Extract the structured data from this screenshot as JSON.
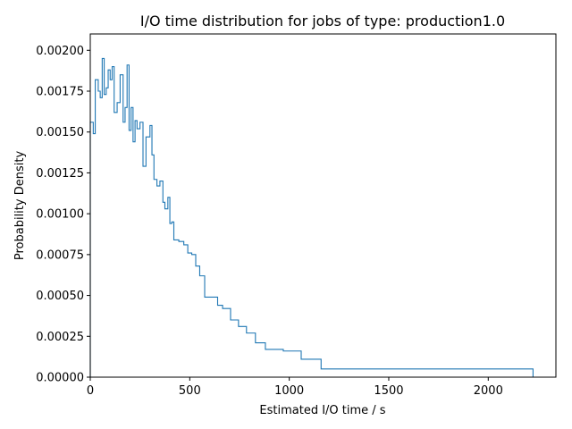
{
  "chart_data": {
    "type": "histogram-step",
    "title": "I/O time distribution for jobs of type: production1.0",
    "xlabel": "Estimated I/O time / s",
    "ylabel": "Probability Density",
    "xlim": [
      0,
      2340
    ],
    "ylim": [
      0,
      0.0021
    ],
    "xticks": [
      0,
      500,
      1000,
      1500,
      2000
    ],
    "xtick_labels": [
      "0",
      "500",
      "1000",
      "1500",
      "2000"
    ],
    "yticks": [
      0,
      0.00025,
      0.0005,
      0.00075,
      0.001,
      0.00125,
      0.0015,
      0.00175,
      0.002
    ],
    "ytick_labels": [
      "0.00000",
      "0.00025",
      "0.00050",
      "0.00075",
      "0.00100",
      "0.00125",
      "0.00150",
      "0.00175",
      "0.00200"
    ],
    "line_color": "#1f77b4",
    "grid": false,
    "bin_edges": [
      0,
      15,
      25,
      40,
      50,
      60,
      70,
      80,
      90,
      100,
      110,
      120,
      135,
      150,
      165,
      175,
      185,
      195,
      205,
      215,
      225,
      235,
      250,
      265,
      280,
      300,
      310,
      320,
      335,
      350,
      365,
      375,
      390,
      400,
      410,
      420,
      445,
      470,
      490,
      510,
      530,
      550,
      575,
      600,
      640,
      665,
      705,
      745,
      785,
      830,
      880,
      970,
      1060,
      1160,
      1300,
      2225
    ],
    "densities": [
      0.00156,
      0.00149,
      0.00182,
      0.00175,
      0.00171,
      0.00195,
      0.00173,
      0.00177,
      0.00188,
      0.00182,
      0.0019,
      0.00162,
      0.00168,
      0.00185,
      0.00156,
      0.00165,
      0.00191,
      0.00151,
      0.00165,
      0.00144,
      0.00157,
      0.00152,
      0.00156,
      0.00129,
      0.00147,
      0.00154,
      0.00136,
      0.00121,
      0.00117,
      0.0012,
      0.00107,
      0.00103,
      0.0011,
      0.00094,
      0.00095,
      0.00084,
      0.00083,
      0.00081,
      0.00076,
      0.00075,
      0.00068,
      0.00062,
      0.00049,
      0.00049,
      0.00044,
      0.00042,
      0.00035,
      0.00031,
      0.00027,
      0.00021,
      0.00017,
      0.00016,
      0.00011,
      5e-05,
      5e-05
    ]
  }
}
